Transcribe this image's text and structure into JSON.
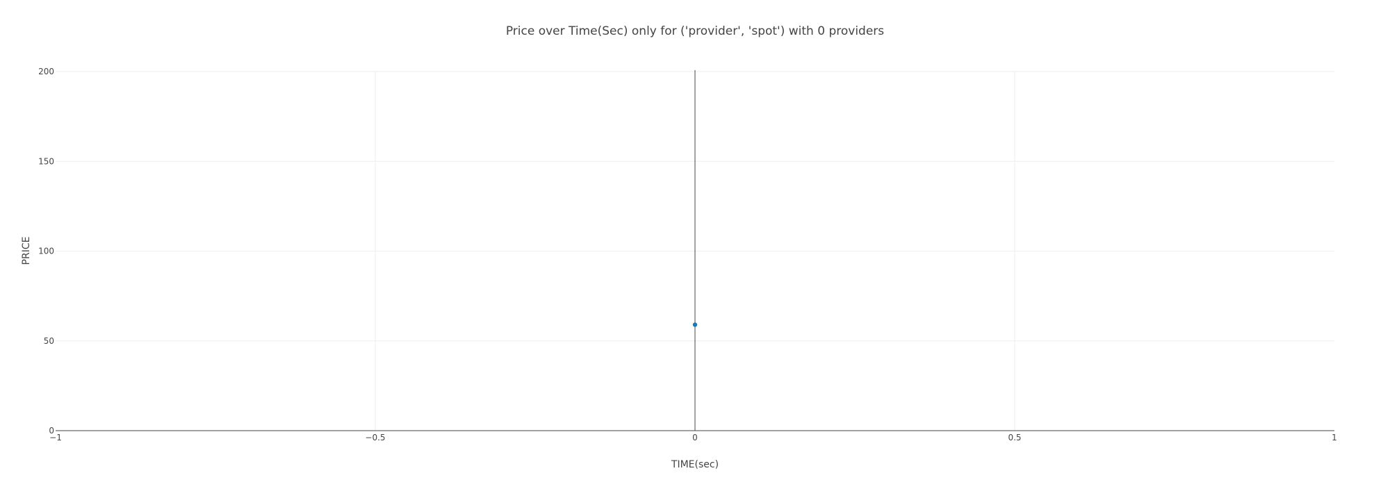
{
  "chart_data": {
    "type": "scatter",
    "title": "Price over Time(Sec) only for ('provider', 'spot') with 0 providers",
    "xlabel": "TIME(sec)",
    "ylabel": "PRICE",
    "xlim": [
      -1,
      1
    ],
    "ylim": [
      0,
      200
    ],
    "x_ticks": [
      -1,
      -0.5,
      0,
      0.5,
      1
    ],
    "x_tick_labels": [
      "−1",
      "−0.5",
      "0",
      "0.5",
      "1"
    ],
    "y_ticks": [
      0,
      50,
      100,
      150,
      200
    ],
    "y_tick_labels": [
      "0",
      "50",
      "100",
      "150",
      "200"
    ],
    "grid": true,
    "legend": false,
    "series": [
      {
        "color": "#1f77b4",
        "points": [
          {
            "x": 0,
            "y": 59
          }
        ]
      }
    ]
  }
}
